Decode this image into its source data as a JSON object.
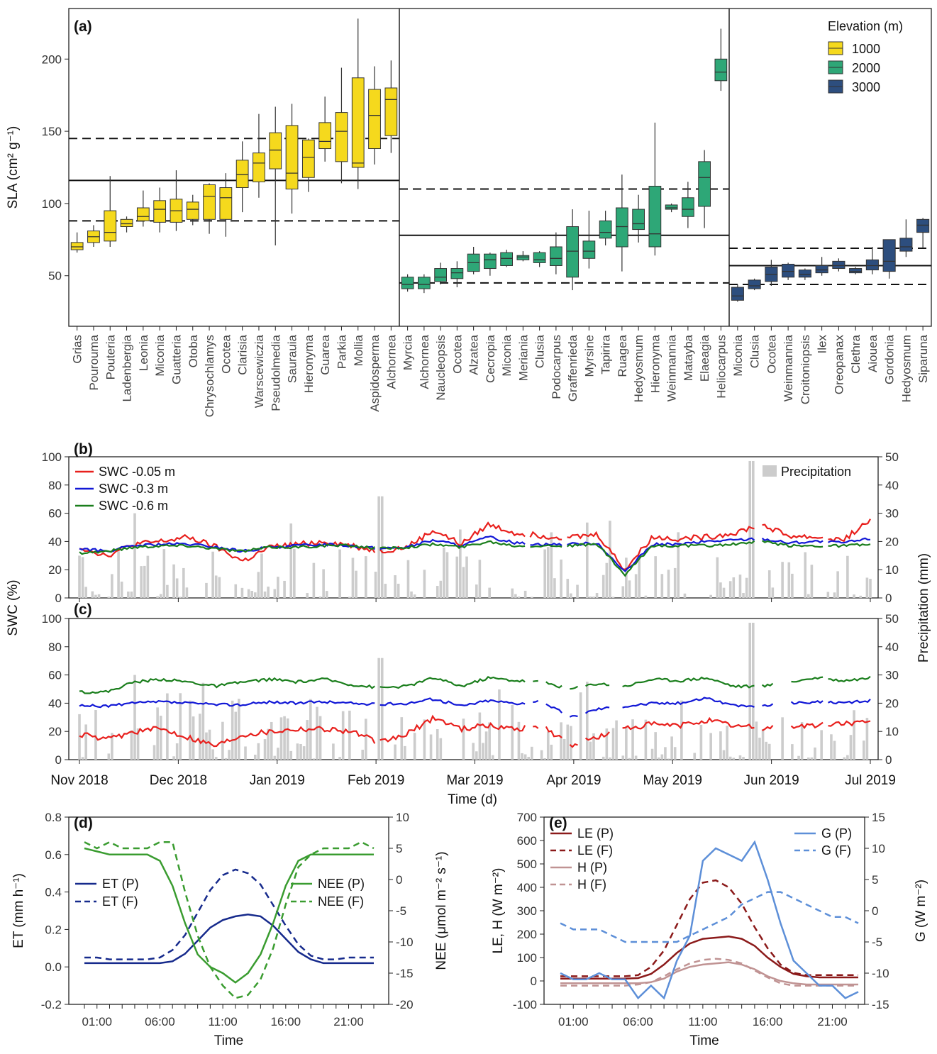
{
  "colors": {
    "e1000": "#f5d91d",
    "e2000": "#2ea777",
    "e3000": "#2d4e7e",
    "swc005": "#e8201d",
    "swc03": "#1218d6",
    "swc06": "#1a7e1c",
    "precip": "#cccccc",
    "et": "#162a8c",
    "nee": "#3a9c30",
    "le": "#8b1a1a",
    "h": "#c09393",
    "g": "#5d8fd8"
  },
  "panel_a": {
    "label": "(a)",
    "ylabel": "SLA (cm² g⁻¹)",
    "ylim": [
      15,
      235
    ],
    "yticks": [
      50,
      100,
      150,
      200
    ],
    "legend_title": "Elevation (m)",
    "legend_items": [
      "1000",
      "2000",
      "3000"
    ],
    "groups": [
      {
        "elevation": "1000",
        "mean": 116,
        "lower": 88,
        "upper": 145,
        "species": [
          "Grias",
          "Pourouma",
          "Pouteria",
          "Ladenbergia",
          "Leonia",
          "Miconia",
          "Guatteria",
          "Otoba",
          "Chrysochlamys",
          "Ocotea",
          "Clarisia",
          "Warscewiczia",
          "Pseudolmedia",
          "Saurauia",
          "Hieronyma",
          "Guarea",
          "Parkia",
          "Mollia",
          "Aspidosperma",
          "Alchornea"
        ],
        "boxes": [
          [
            66,
            68,
            70,
            73,
            80
          ],
          [
            70,
            73,
            77,
            81,
            85
          ],
          [
            70,
            74,
            80,
            95,
            119
          ],
          [
            80,
            84,
            86,
            89,
            91
          ],
          [
            84,
            88,
            91,
            97,
            109
          ],
          [
            80,
            87,
            96,
            102,
            111
          ],
          [
            81,
            87,
            95,
            103,
            123
          ],
          [
            85,
            89,
            96,
            101,
            106
          ],
          [
            79,
            89,
            105,
            113,
            114
          ],
          [
            77,
            89,
            104,
            111,
            121
          ],
          [
            94,
            111,
            120,
            130,
            143
          ],
          [
            104,
            115,
            128,
            135,
            162
          ],
          [
            71,
            124,
            137,
            149,
            167
          ],
          [
            93,
            110,
            121,
            154,
            169
          ],
          [
            108,
            118,
            132,
            144,
            145
          ],
          [
            129,
            138,
            143,
            156,
            174
          ],
          [
            114,
            129,
            150,
            163,
            194
          ],
          [
            110,
            125,
            128,
            187,
            228
          ],
          [
            127,
            138,
            161,
            179,
            195
          ],
          [
            135,
            147,
            172,
            180,
            199
          ]
        ]
      },
      {
        "elevation": "2000",
        "mean": 78,
        "lower": 45,
        "upper": 110,
        "species": [
          "Myrcia",
          "Alchornea",
          "Naucleopsis",
          "Ocotea",
          "Alzatea",
          "Cecropia",
          "Miconia",
          "Meriania",
          "Clusia",
          "Podocarpus",
          "Graffenrieda",
          "Myrsine",
          "Tapirira",
          "Ruagea",
          "Hedyosmum",
          "Hieronyma",
          "Weinmannia",
          "Matayba",
          "Elaeagia",
          "Heliocarpus"
        ],
        "boxes": [
          [
            39,
            41,
            44,
            49,
            51
          ],
          [
            38,
            41,
            44,
            49,
            51
          ],
          [
            44,
            46,
            49,
            55,
            59
          ],
          [
            42,
            48,
            52,
            55,
            60
          ],
          [
            51,
            53,
            59,
            65,
            70
          ],
          [
            50,
            55,
            61,
            65,
            66
          ],
          [
            56,
            57,
            62,
            66,
            68
          ],
          [
            60,
            61,
            63,
            64,
            67
          ],
          [
            56,
            59,
            61,
            66,
            67
          ],
          [
            51,
            57,
            62,
            70,
            80
          ],
          [
            40,
            49,
            67,
            84,
            96
          ],
          [
            55,
            62,
            67,
            74,
            95
          ],
          [
            71,
            76,
            80,
            88,
            95
          ],
          [
            53,
            70,
            84,
            97,
            120
          ],
          [
            73,
            82,
            86,
            96,
            106
          ],
          [
            64,
            70,
            79,
            112,
            156
          ],
          [
            94,
            96,
            97,
            99,
            100
          ],
          [
            83,
            91,
            96,
            104,
            115
          ],
          [
            83,
            98,
            118,
            129,
            137
          ],
          [
            178,
            185,
            191,
            200,
            221
          ]
        ]
      },
      {
        "elevation": "3000",
        "mean": 57,
        "lower": 44,
        "upper": 69,
        "species": [
          "Miconia",
          "Clusia",
          "Ocotea",
          "Weinmannia",
          "Croitoniopsis",
          "Ilex",
          "Oreopanax",
          "Clethra",
          "Aiouea",
          "Gordonia",
          "Hedyosmum",
          "Siparuna"
        ],
        "boxes": [
          [
            32,
            33,
            36,
            42,
            44
          ],
          [
            40,
            41,
            43,
            47,
            48
          ],
          [
            43,
            46,
            51,
            56,
            61
          ],
          [
            47,
            49,
            53,
            58,
            59
          ],
          [
            47,
            49,
            51,
            54,
            55
          ],
          [
            50,
            52,
            54,
            57,
            63
          ],
          [
            53,
            55,
            57,
            60,
            62
          ],
          [
            51,
            52,
            53,
            55,
            56
          ],
          [
            51,
            54,
            57,
            61,
            70
          ],
          [
            48,
            53,
            60,
            75,
            75
          ],
          [
            63,
            67,
            70,
            76,
            89
          ],
          [
            69,
            80,
            85,
            89,
            90
          ]
        ]
      }
    ]
  },
  "panel_b": {
    "label": "(b)",
    "legend": [
      "SWC -0.05 m",
      "SWC -0.3 m",
      "SWC -0.6 m"
    ],
    "precip_label": "Precipitation"
  },
  "panel_c": {
    "label": "(c)"
  },
  "swc_axes": {
    "ylabel": "SWC (%)",
    "ylabel_right": "Precipitation (mm)",
    "yticks": [
      0,
      20,
      40,
      60,
      80,
      100
    ],
    "yticks_right": [
      0,
      10,
      20,
      30,
      40,
      50
    ],
    "xticks": [
      "Nov 2018",
      "Dec 2018",
      "Jan 2019",
      "Feb 2019",
      "Mar 2019",
      "Apr 2019",
      "May 2019",
      "Jun 2019",
      "Jul 2019"
    ],
    "xlabel": "Time (d)"
  },
  "panel_d": {
    "label": "(d)",
    "ylabel": "ET (mm h⁻¹)",
    "ylabel_right": "NEE (μmol m⁻² s⁻¹)",
    "xlabel": "Time",
    "yticks": [
      "-0.2",
      "0.0",
      "0.2",
      "0.4",
      "0.6",
      "0.8"
    ],
    "yticks_right": [
      "-20",
      "-15",
      "-10",
      "-5",
      "0",
      "5",
      "10"
    ],
    "xticks": [
      "01:00",
      "06:00",
      "11:00",
      "16:00",
      "21:00"
    ],
    "legend_left": [
      "ET (P)",
      "ET (F)"
    ],
    "legend_right": [
      "NEE (P)",
      "NEE (F)"
    ]
  },
  "panel_e": {
    "label": "(e)",
    "ylabel": "LE, H (W m⁻²)",
    "ylabel_right": "G (W m⁻²)",
    "xlabel": "Time",
    "yticks": [
      "-100",
      "0",
      "100",
      "200",
      "300",
      "400",
      "500",
      "600",
      "700"
    ],
    "yticks_right": [
      "-15",
      "-10",
      "-5",
      "0",
      "5",
      "10",
      "15"
    ],
    "xticks": [
      "01:00",
      "06:00",
      "11:00",
      "16:00",
      "21:00"
    ],
    "legend_left": [
      "LE (P)",
      "LE (F)",
      "H (P)",
      "H (F)"
    ],
    "legend_right": [
      "G (P)",
      "G (F)"
    ]
  },
  "chart_data": [
    {
      "type": "box",
      "title": "",
      "ylabel": "SLA (cm² g⁻¹)",
      "note": "box values per species [min,q1,median,q3,max] in panel_a.groups"
    },
    {
      "type": "line",
      "panel": "b",
      "x_range": [
        "Nov 2018",
        "Jul 2019"
      ],
      "series": [
        {
          "name": "SWC -0.05 m",
          "approx_values": [
            36,
            30,
            38,
            40,
            43,
            36,
            26,
            36,
            38,
            40,
            37,
            33,
            36,
            48,
            38,
            52,
            46,
            44,
            43,
            45,
            20,
            43,
            42,
            43,
            46,
            52,
            44,
            43,
            41,
            55
          ]
        },
        {
          "name": "SWC -0.3 m",
          "approx_values": [
            35,
            33,
            37,
            38,
            38,
            36,
            33,
            36,
            37,
            38,
            37,
            35,
            36,
            41,
            37,
            43,
            39,
            38,
            38,
            39,
            18,
            38,
            38,
            40,
            41,
            42,
            39,
            40,
            39,
            42
          ]
        },
        {
          "name": "SWC -0.6 m",
          "approx_values": [
            32,
            33,
            36,
            37,
            37,
            35,
            33,
            36,
            36,
            37,
            37,
            35,
            36,
            38,
            36,
            40,
            37,
            37,
            37,
            38,
            16,
            37,
            37,
            37,
            38,
            40,
            37,
            37,
            37,
            38
          ]
        },
        {
          "name": "Precipitation",
          "unit": "mm",
          "ylim": [
            0,
            50
          ]
        }
      ]
    },
    {
      "type": "line",
      "panel": "c",
      "series": [
        {
          "name": "SWC -0.05 m",
          "approx_values": [
            18,
            14,
            20,
            22,
            16,
            10,
            18,
            20,
            22,
            22,
            20,
            12,
            18,
            30,
            22,
            24,
            22,
            24,
            10,
            16,
            22,
            25,
            24,
            28,
            24,
            22,
            24,
            24,
            26,
            26
          ]
        },
        {
          "name": "SWC -0.3 m",
          "approx_values": [
            38,
            38,
            40,
            41,
            40,
            39,
            39,
            41,
            40,
            41,
            40,
            39,
            40,
            43,
            38,
            42,
            40,
            41,
            30,
            36,
            38,
            40,
            40,
            44,
            38,
            38,
            40,
            41,
            40,
            42
          ]
        },
        {
          "name": "SWC -0.6 m",
          "approx_values": [
            48,
            48,
            55,
            57,
            55,
            52,
            55,
            57,
            55,
            57,
            53,
            51,
            52,
            58,
            52,
            58,
            56,
            55,
            50,
            54,
            52,
            57,
            56,
            58,
            52,
            52,
            55,
            58,
            56,
            58
          ]
        }
      ]
    },
    {
      "type": "line",
      "panel": "d",
      "x_hours": [
        0,
        1,
        2,
        3,
        4,
        5,
        6,
        7,
        8,
        9,
        10,
        11,
        12,
        13,
        14,
        15,
        16,
        17,
        18,
        19,
        20,
        21,
        22,
        23
      ],
      "series": [
        {
          "name": "ET (P)",
          "axis": "left",
          "values": [
            0.02,
            0.02,
            0.02,
            0.02,
            0.02,
            0.02,
            0.02,
            0.03,
            0.07,
            0.14,
            0.21,
            0.25,
            0.27,
            0.28,
            0.27,
            0.22,
            0.15,
            0.08,
            0.04,
            0.02,
            0.02,
            0.02,
            0.02,
            0.02
          ]
        },
        {
          "name": "ET (F)",
          "axis": "left",
          "values": [
            0.05,
            0.05,
            0.04,
            0.04,
            0.04,
            0.04,
            0.05,
            0.09,
            0.17,
            0.29,
            0.41,
            0.49,
            0.52,
            0.5,
            0.44,
            0.33,
            0.22,
            0.12,
            0.06,
            0.04,
            0.04,
            0.05,
            0.05,
            0.05
          ]
        },
        {
          "name": "NEE (P)",
          "axis": "right",
          "values": [
            5,
            4.5,
            4,
            4,
            4,
            4,
            3,
            -1,
            -7,
            -12,
            -14,
            -15,
            -16.5,
            -15,
            -12,
            -7,
            -1,
            3,
            4,
            4,
            4,
            4,
            4,
            4
          ]
        },
        {
          "name": "NEE (F)",
          "axis": "right",
          "values": [
            6,
            5,
            6,
            5,
            5,
            5,
            6,
            6,
            -2,
            -9,
            -14,
            -17,
            -19,
            -18.5,
            -16,
            -11,
            -4,
            2,
            4,
            5,
            5,
            5,
            6,
            5
          ]
        }
      ]
    },
    {
      "type": "line",
      "panel": "e",
      "x_hours": [
        0,
        1,
        2,
        3,
        4,
        5,
        6,
        7,
        8,
        9,
        10,
        11,
        12,
        13,
        14,
        15,
        16,
        17,
        18,
        19,
        20,
        21,
        22,
        23
      ],
      "series": [
        {
          "name": "LE (P)",
          "axis": "left",
          "values": [
            10,
            10,
            10,
            10,
            10,
            10,
            12,
            30,
            70,
            120,
            160,
            180,
            185,
            190,
            180,
            150,
            100,
            60,
            30,
            20,
            15,
            15,
            15,
            15
          ]
        },
        {
          "name": "LE (F)",
          "axis": "left",
          "values": [
            20,
            20,
            20,
            20,
            20,
            20,
            25,
            60,
            130,
            240,
            350,
            420,
            430,
            400,
            330,
            230,
            140,
            70,
            35,
            25,
            25,
            25,
            25,
            25
          ]
        },
        {
          "name": "H (P)",
          "axis": "left",
          "values": [
            -10,
            -10,
            -10,
            -10,
            -10,
            -10,
            -10,
            -5,
            10,
            40,
            60,
            70,
            75,
            80,
            70,
            50,
            20,
            0,
            -10,
            -15,
            -15,
            -15,
            -15,
            -15
          ]
        },
        {
          "name": "H (F)",
          "axis": "left",
          "values": [
            -20,
            -20,
            -20,
            -20,
            -20,
            -20,
            -15,
            -5,
            20,
            50,
            75,
            90,
            95,
            90,
            75,
            45,
            15,
            -10,
            -20,
            -20,
            -20,
            -20,
            -20,
            -20
          ]
        },
        {
          "name": "G (P)",
          "axis": "right",
          "values": [
            -10,
            -11,
            -11,
            -10,
            -11,
            -11,
            -14,
            -12,
            -14,
            -8,
            -4,
            8,
            10,
            9,
            8,
            11,
            5,
            -2,
            -8,
            -10,
            -12,
            -12,
            -14,
            -13
          ]
        },
        {
          "name": "G (F)",
          "axis": "right",
          "values": [
            -2,
            -3,
            -3,
            -3,
            -4,
            -5,
            -5,
            -5,
            -5,
            -5,
            -4,
            -3,
            -2,
            -1,
            1,
            2,
            3,
            3,
            2,
            1,
            0,
            -1,
            -1,
            -2
          ]
        }
      ]
    }
  ]
}
